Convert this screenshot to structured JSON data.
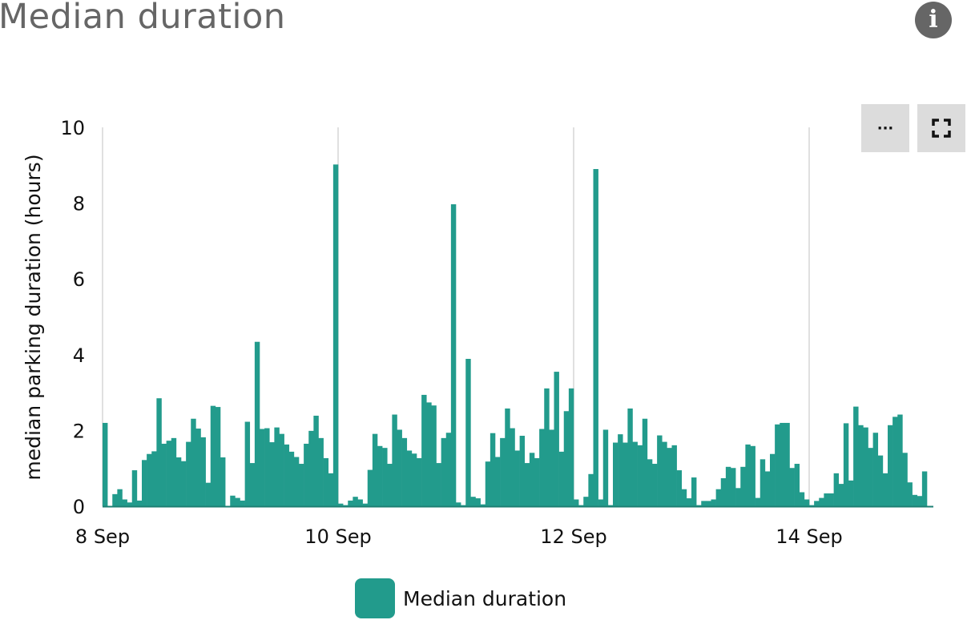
{
  "header": {
    "title": "Median duration",
    "info_icon": "info-circle-icon"
  },
  "toolbar": {
    "more_label": "···",
    "more_icon": "ellipsis-icon",
    "fullscreen_icon": "fullscreen-icon"
  },
  "legend": {
    "label": "Median duration",
    "color": "#229b8c"
  },
  "chart_data": {
    "type": "bar",
    "title": "",
    "ylabel": "median parking duration (hours)",
    "xlabel": "",
    "ylim": [
      0,
      10
    ],
    "yticks": [
      "0",
      "2",
      "4",
      "6",
      "8",
      "10"
    ],
    "xticks": [
      {
        "label": "8 Sep",
        "hour": 0
      },
      {
        "label": "10 Sep",
        "hour": 48
      },
      {
        "label": "12 Sep",
        "hour": 96
      },
      {
        "label": "14 Sep",
        "hour": 144
      }
    ],
    "x_unit": "hourly, starting 8 Sep 00:00",
    "grid": "vertical at date ticks",
    "legend_position": "bottom",
    "series": [
      {
        "name": "Median duration",
        "color": "#229b8c",
        "values": [
          2.2,
          0,
          0.32,
          0.45,
          0.18,
          0.1,
          0.95,
          0.15,
          1.22,
          1.38,
          1.45,
          2.85,
          1.65,
          1.73,
          1.8,
          1.29,
          1.19,
          1.7,
          2.31,
          2.05,
          1.82,
          0.62,
          2.65,
          2.62,
          1.29,
          0,
          0.28,
          0.22,
          0.15,
          2.23,
          1.14,
          4.34,
          2.04,
          2.06,
          1.69,
          2.08,
          1.91,
          1.63,
          1.44,
          1.3,
          1.12,
          1.65,
          1.99,
          2.39,
          1.8,
          1.27,
          0.87,
          9.02,
          0.07,
          0.03,
          0.15,
          0.25,
          0.18,
          0.07,
          0.96,
          1.91,
          1.59,
          1.54,
          1.12,
          2.42,
          2.02,
          1.8,
          1.47,
          1.39,
          1.27,
          2.94,
          2.74,
          2.66,
          1.14,
          1.8,
          1.94,
          7.97,
          0.1,
          0.03,
          3.89,
          0.25,
          0.21,
          0.05,
          1.18,
          1.93,
          1.3,
          1.8,
          2.58,
          2.06,
          1.47,
          1.86,
          1.14,
          1.41,
          1.27,
          2.04,
          3.11,
          2.02,
          3.55,
          1.44,
          2.51,
          3.11,
          0.18,
          0.03,
          0.25,
          0.85,
          8.9,
          0.18,
          2.02,
          0.03,
          1.68,
          1.9,
          1.68,
          2.58,
          1.7,
          1.61,
          2.31,
          1.24,
          1.12,
          1.87,
          1.7,
          1.54,
          1.61,
          0.95,
          0.45,
          0.21,
          0.76,
          0.03,
          0.14,
          0.14,
          0.18,
          0.45,
          0.74,
          1.04,
          1.01,
          0.48,
          1.04,
          1.63,
          1.59,
          0.22,
          1.24,
          0.92,
          1.38,
          2.16,
          2.2,
          2.2,
          1.01,
          1.12,
          0.37,
          0.18,
          0.03,
          0.14,
          0.22,
          0.34,
          0.34,
          0.87,
          0.59,
          2.19,
          0.68,
          2.63,
          2.14,
          2.08,
          1.54,
          1.94,
          1.34,
          0.87,
          2.14,
          2.36,
          2.42,
          1.41,
          0.63,
          0.3,
          0.27,
          0.92
        ]
      }
    ]
  }
}
